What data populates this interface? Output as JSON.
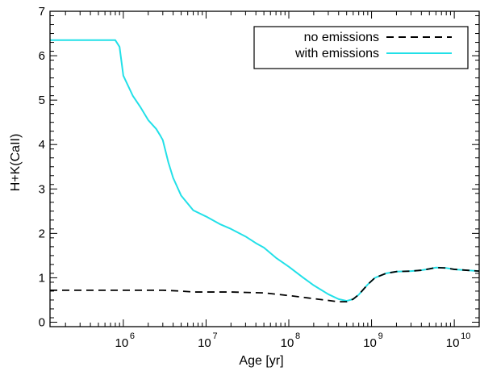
{
  "chart_data": {
    "type": "line",
    "title": "",
    "xlabel": "Age [yr]",
    "ylabel": "H+K(CaII)",
    "xscale": "log",
    "xlim": [
      130000,
      20000000000
    ],
    "ylim": [
      -0.1,
      7.0
    ],
    "grid": false,
    "legend_position": "top-right",
    "x_ticks": [
      {
        "value": 1000000,
        "label": "10",
        "exp": "6"
      },
      {
        "value": 10000000,
        "label": "10",
        "exp": "7"
      },
      {
        "value": 100000000,
        "label": "10",
        "exp": "8"
      },
      {
        "value": 1000000000,
        "label": "10",
        "exp": "9"
      },
      {
        "value": 10000000000,
        "label": "10",
        "exp": "10"
      }
    ],
    "y_ticks": [
      0,
      1,
      2,
      3,
      4,
      5,
      6,
      7
    ],
    "series": [
      {
        "name": "no emissions",
        "color": "#000000",
        "dash": "dashed",
        "x": [
          130000,
          200000,
          500000,
          1000000,
          2000000,
          3000000,
          5000000,
          7000000,
          10000000,
          20000000,
          50000000,
          100000000,
          200000000,
          300000000,
          400000000,
          500000000,
          600000000,
          700000000,
          900000000,
          1100000000,
          1500000000,
          2000000000,
          3000000000,
          4000000000,
          5000000000,
          6000000000,
          8000000000,
          10000000000,
          14000000000,
          20000000000
        ],
        "y": [
          0.72,
          0.72,
          0.72,
          0.72,
          0.72,
          0.72,
          0.7,
          0.68,
          0.68,
          0.68,
          0.66,
          0.6,
          0.53,
          0.49,
          0.46,
          0.46,
          0.52,
          0.62,
          0.85,
          1.0,
          1.1,
          1.14,
          1.15,
          1.17,
          1.2,
          1.23,
          1.22,
          1.19,
          1.17,
          1.15
        ]
      },
      {
        "name": "with emissions",
        "color": "#22e0e8",
        "dash": "solid",
        "x": [
          130000,
          300000,
          600000,
          800000,
          900000,
          1000000,
          1300000,
          1600000,
          2000000,
          2500000,
          2800000,
          3000000,
          3500000,
          4000000,
          5000000,
          7000000,
          10000000,
          15000000,
          20000000,
          30000000,
          40000000,
          50000000,
          70000000,
          100000000,
          150000000,
          200000000,
          300000000,
          400000000,
          500000000,
          600000000,
          700000000,
          900000000,
          1100000000,
          1500000000,
          2000000000,
          3000000000,
          4000000000,
          5000000000,
          6000000000,
          8000000000,
          10000000000,
          14000000000,
          20000000000
        ],
        "y": [
          6.35,
          6.35,
          6.35,
          6.35,
          6.2,
          5.55,
          5.1,
          4.85,
          4.55,
          4.35,
          4.2,
          4.1,
          3.6,
          3.25,
          2.85,
          2.52,
          2.38,
          2.2,
          2.1,
          1.93,
          1.78,
          1.68,
          1.45,
          1.25,
          1.0,
          0.83,
          0.63,
          0.52,
          0.48,
          0.52,
          0.62,
          0.85,
          1.0,
          1.1,
          1.14,
          1.15,
          1.17,
          1.2,
          1.23,
          1.22,
          1.19,
          1.17,
          1.15
        ]
      }
    ]
  }
}
